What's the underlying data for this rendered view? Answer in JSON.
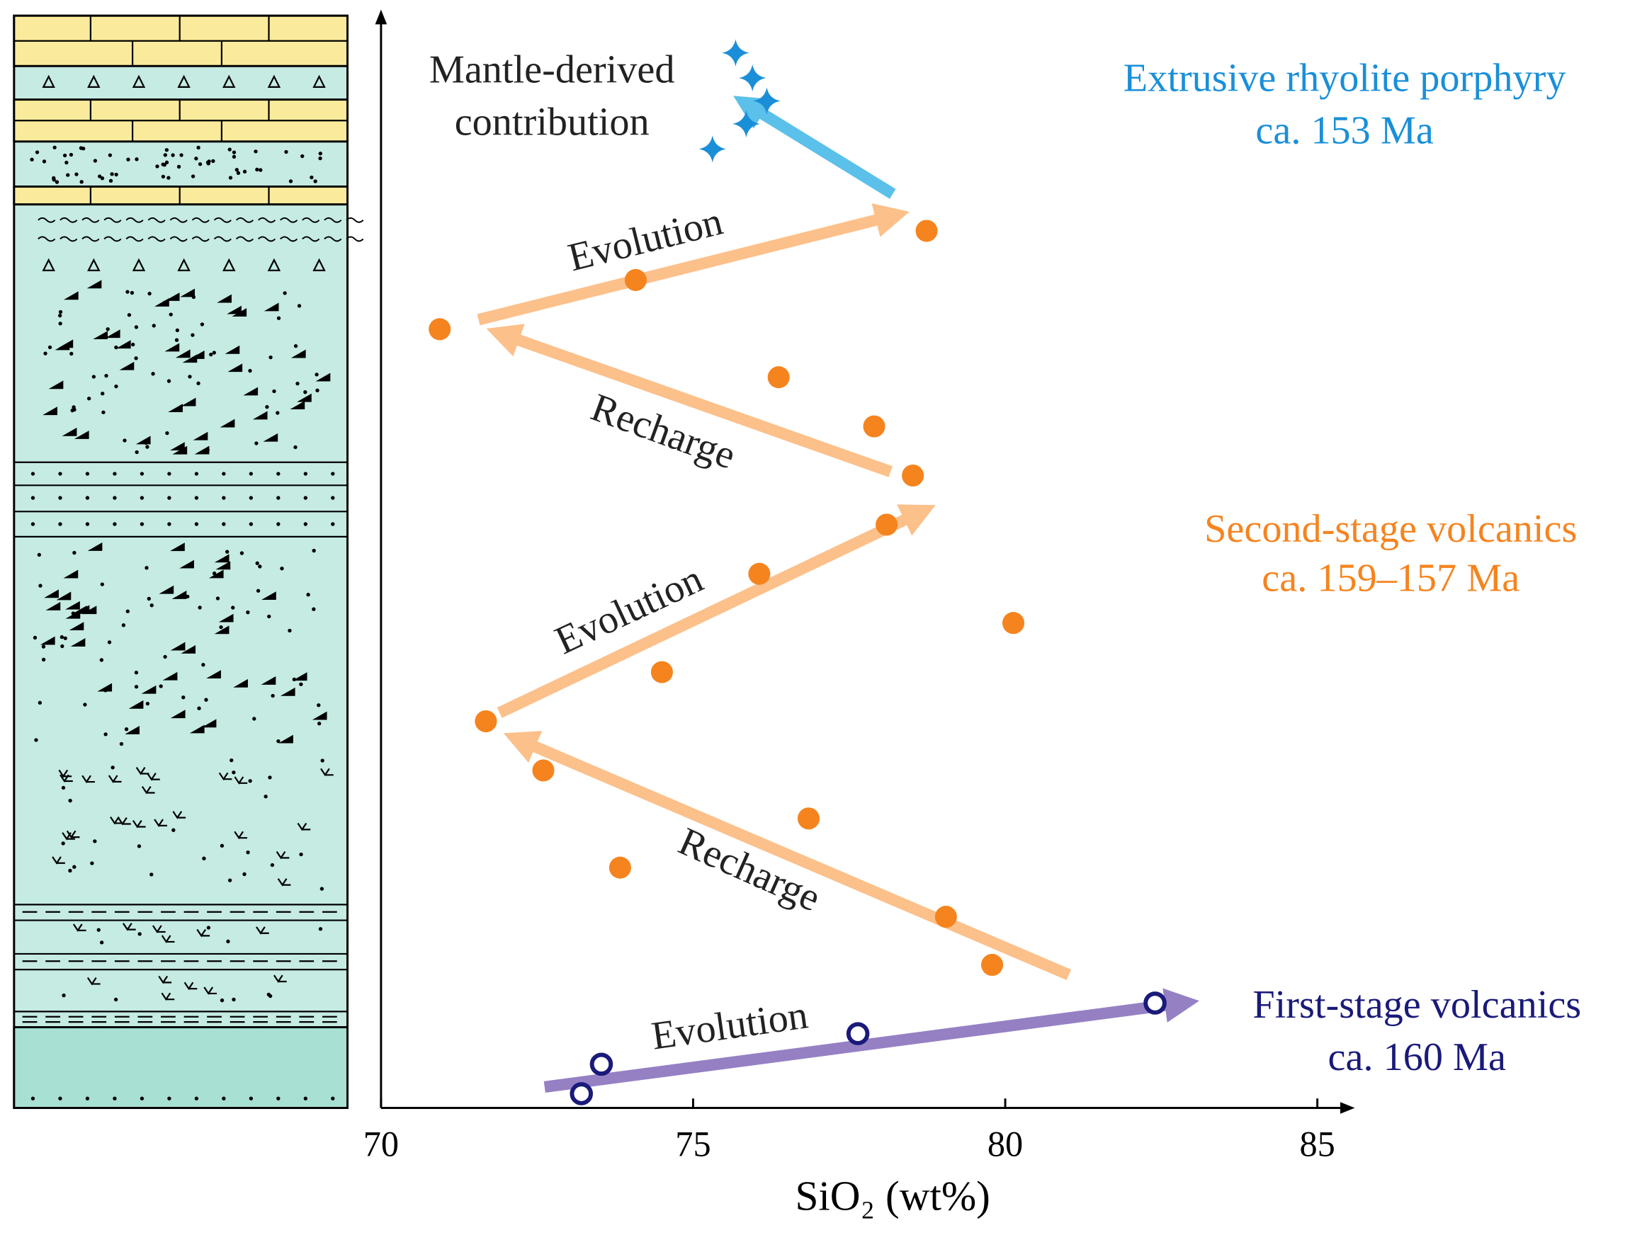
{
  "chart_data": {
    "type": "scatter",
    "xlabel": "SiO₂ (wt%)",
    "xlim": [
      70,
      85.5
    ],
    "xticks": [
      70,
      75,
      80,
      85
    ],
    "ylim": [
      0,
      100
    ],
    "annotations": [
      "Mantle-derived",
      "contribution",
      "Evolution",
      "Recharge",
      "Evolution",
      "Recharge",
      "Evolution"
    ],
    "series": [
      {
        "name": "Extrusive rhyolite porphyry",
        "age": "ca. 153 Ma",
        "color": "#1a8fd8",
        "marker": "star",
        "x": [
          75.68,
          75.95,
          76.18,
          75.85,
          75.31
        ],
        "y": [
          96.6,
          94.3,
          92.2,
          90.1,
          87.8
        ]
      },
      {
        "name": "Second-stage volcanics",
        "age": "ca. 159–157 Ma",
        "color": "#f5841f",
        "marker": "circle",
        "x": [
          78.74,
          74.08,
          70.94,
          76.37,
          77.9,
          78.52,
          78.1,
          76.06,
          80.13,
          74.5,
          71.68,
          72.6,
          76.85,
          73.83,
          79.05,
          79.79
        ],
        "y": [
          80.3,
          75.8,
          71.3,
          66.9,
          62.4,
          57.9,
          53.4,
          48.9,
          44.4,
          39.9,
          35.4,
          30.9,
          26.5,
          22.0,
          17.5,
          13.1
        ]
      },
      {
        "name": "First-stage volcanics",
        "age": "ca. 160 Ma",
        "color": "#1a1a7a",
        "marker": "ring",
        "x": [
          73.21,
          73.53,
          77.64,
          82.4
        ],
        "y": [
          1.3,
          4.0,
          6.8,
          9.6
        ]
      }
    ]
  }
}
